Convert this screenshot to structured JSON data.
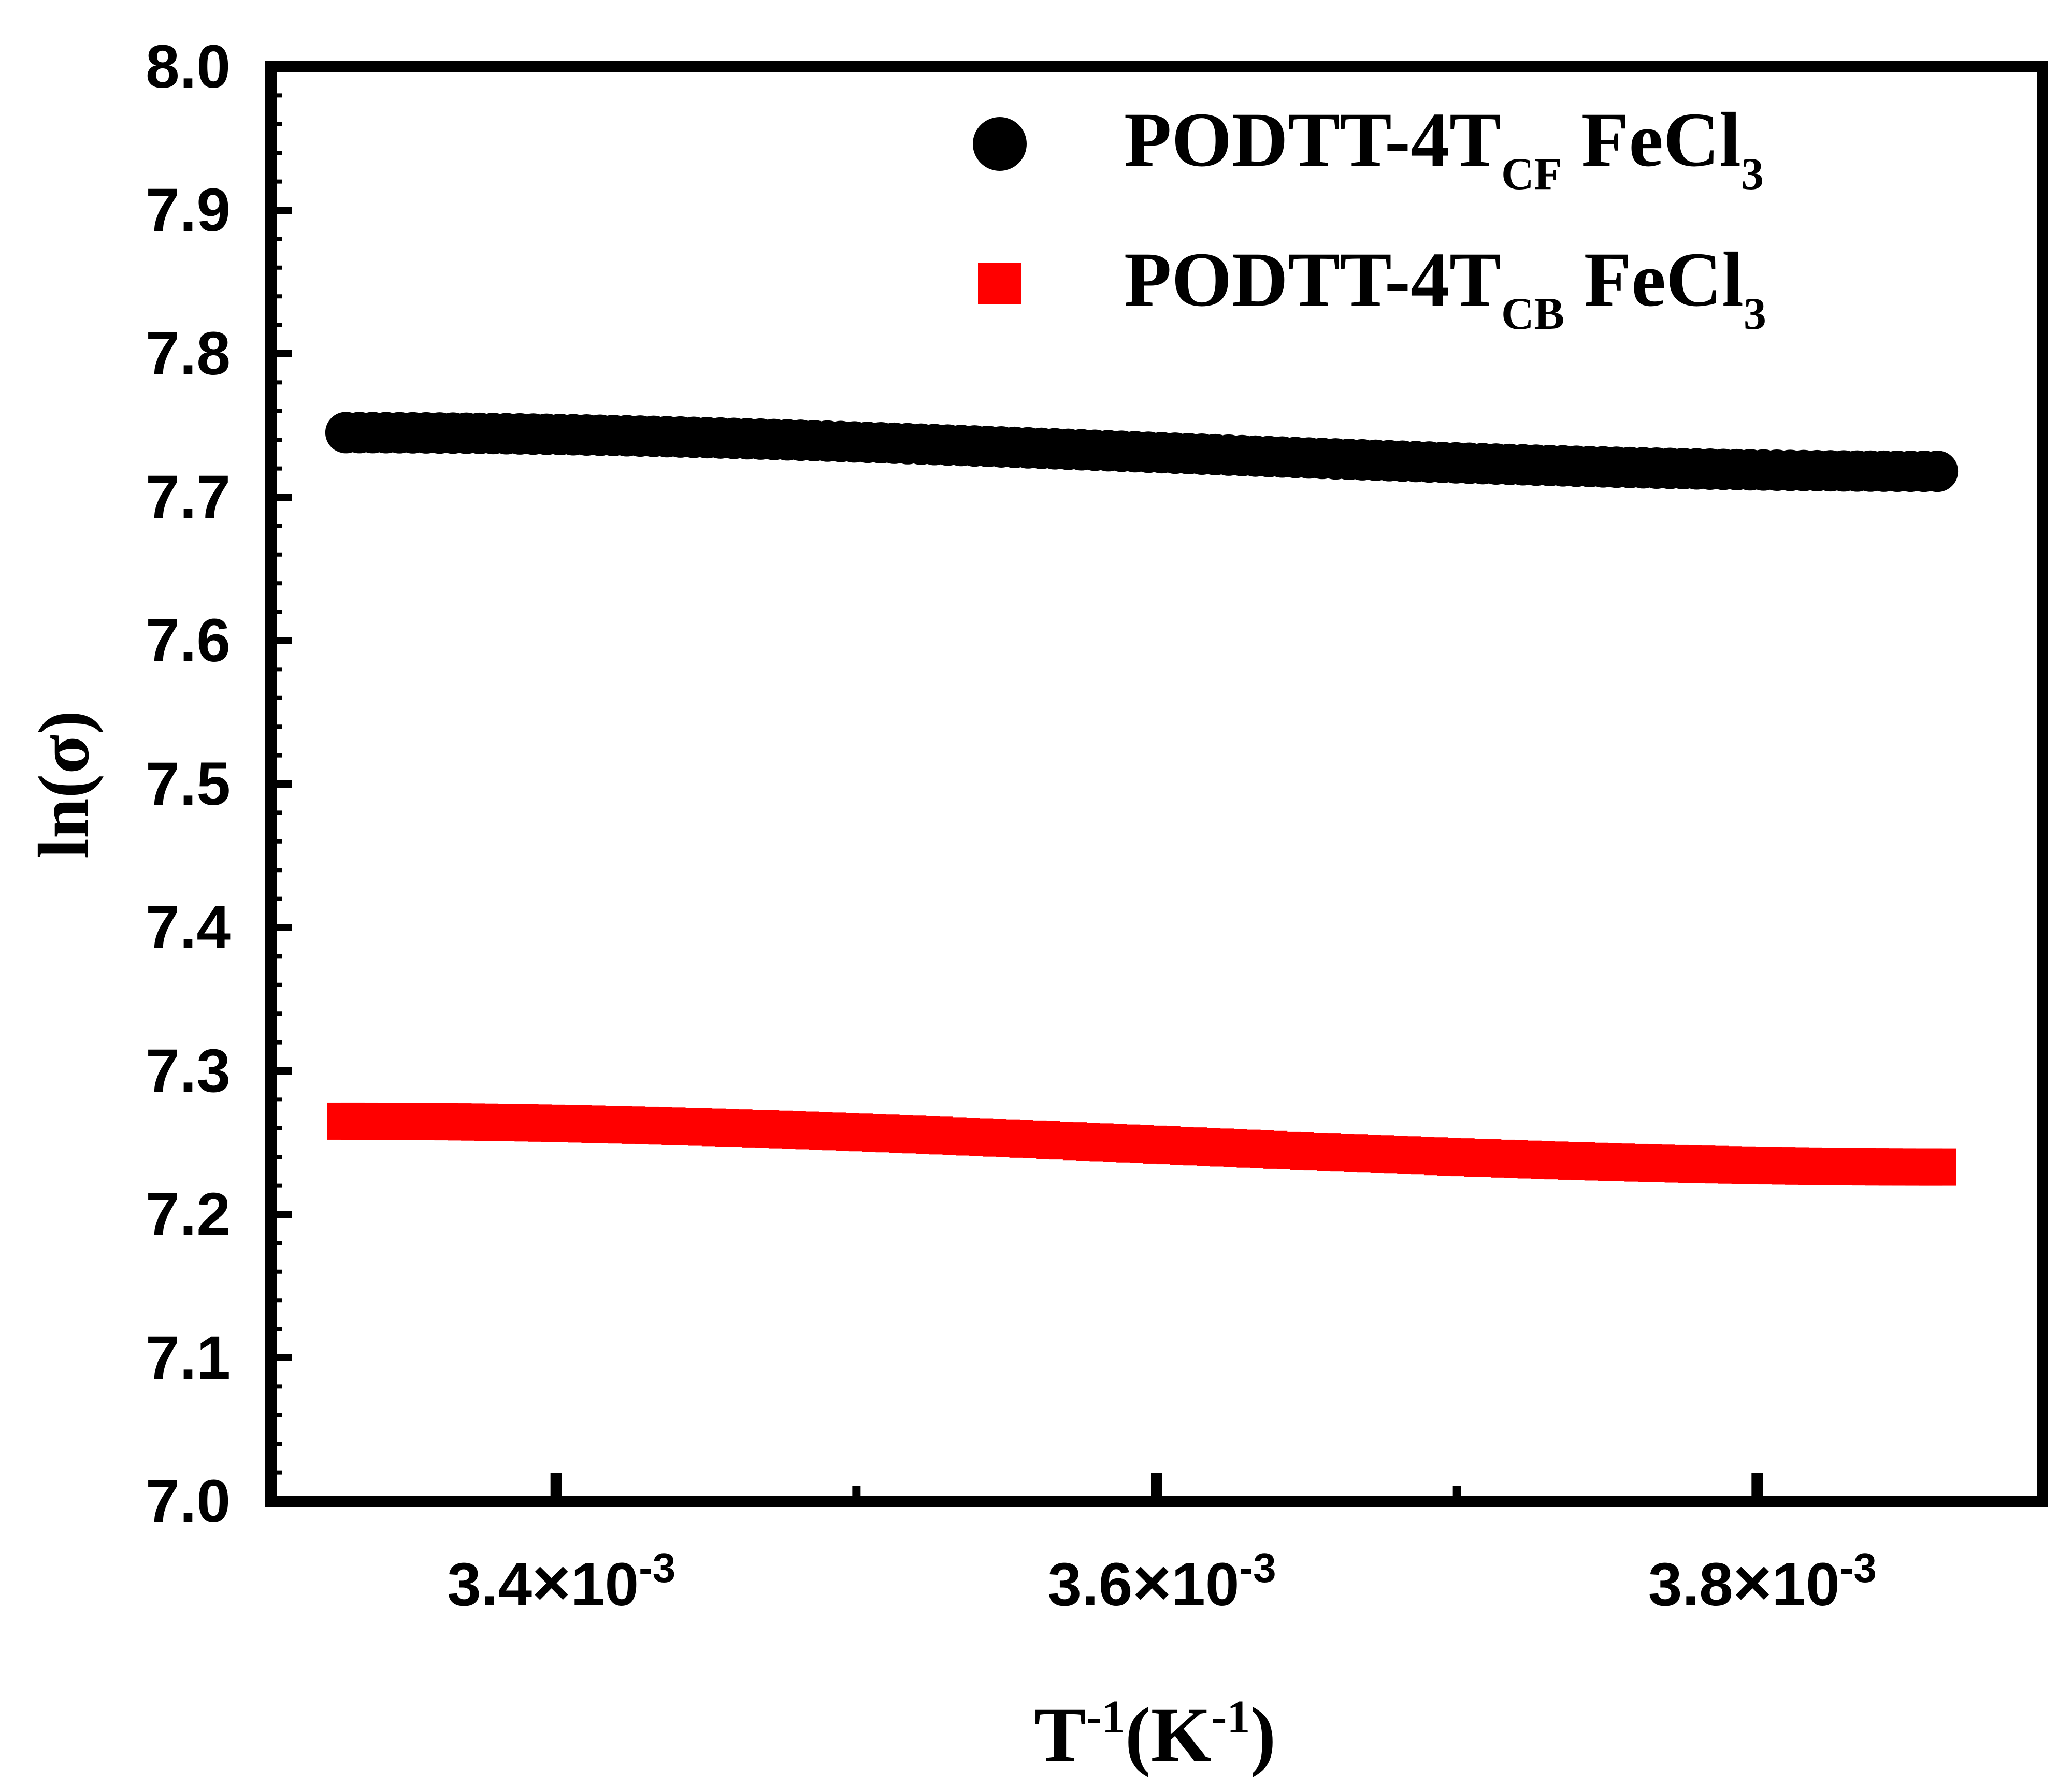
{
  "chart_data": {
    "type": "scatter",
    "title": "",
    "xlabel": {
      "base": "T",
      "sup1": "-1",
      "unit": "(K",
      "sup2": "-1",
      "close": ")"
    },
    "ylabel": "ln(σ)",
    "xlim": [
      0.003305,
      0.003895
    ],
    "ylim": [
      7.0,
      8.0
    ],
    "y_ticks": [
      "7.0",
      "7.1",
      "7.2",
      "7.3",
      "7.4",
      "7.5",
      "7.6",
      "7.7",
      "7.8",
      "7.9",
      "8.0"
    ],
    "x_ticks": [
      {
        "value": 0.0034,
        "mantissa": "3.4",
        "times": "×",
        "base": "10",
        "exp": "-3"
      },
      {
        "value": 0.0036,
        "mantissa": "3.6",
        "times": "×",
        "base": "10",
        "exp": "-3"
      },
      {
        "value": 0.0038,
        "mantissa": "3.8",
        "times": "×",
        "base": "10",
        "exp": "-3"
      }
    ],
    "x_minor_ticks": [
      0.0035,
      0.0037
    ],
    "legend_position": "top-right",
    "series": [
      {
        "name": "PODTT-4T_CF FeCl3",
        "legend": {
          "main": "PODTT-4T",
          "sub": "CF",
          "tail": " FeCl",
          "sub2": "3"
        },
        "marker": "circle",
        "color": "#000000",
        "x_start": 0.00333,
        "x_end": 0.00386,
        "y_start": 7.745,
        "y_end": 7.718,
        "n_points": 120
      },
      {
        "name": "PODTT-4T_CB FeCl3",
        "legend": {
          "main": "PODTT-4T",
          "sub": "CB",
          "tail": " FeCl",
          "sub2": "3"
        },
        "marker": "square",
        "color": "#ff0000",
        "x_start": 0.00333,
        "x_end": 0.00386,
        "y_start": 7.265,
        "y_end": 7.233,
        "n_points": 120
      }
    ]
  }
}
